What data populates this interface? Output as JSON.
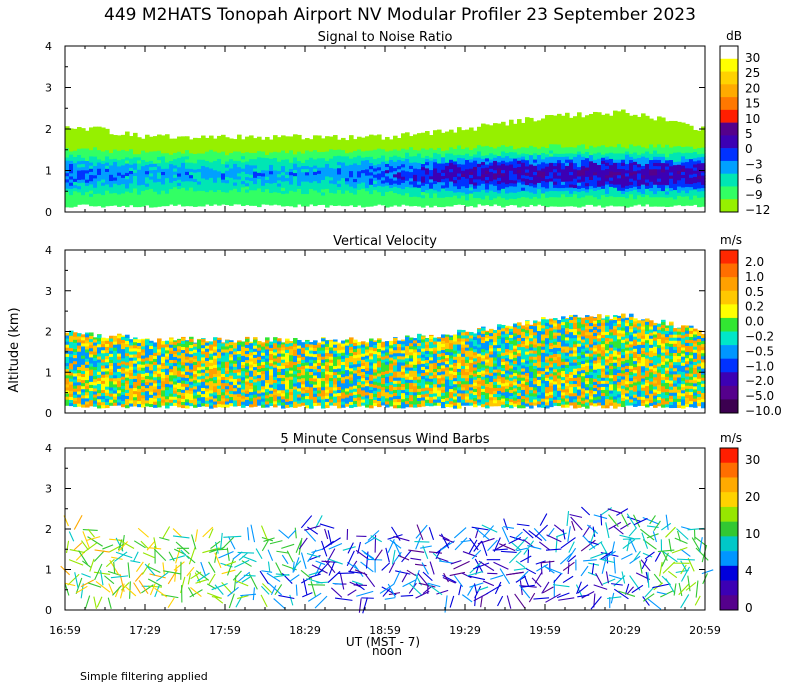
{
  "figure": {
    "title": "449 M2HATS Tonopah Airport NV Modular Profiler 23 September 2023",
    "ylabel": "Altitude (km)",
    "xlabel": "UT  (MST - 7)",
    "noon_label": "noon",
    "footer_note": "Simple filtering applied",
    "x_ticks": [
      "16:59",
      "17:29",
      "17:59",
      "18:29",
      "18:59",
      "19:29",
      "19:59",
      "20:29",
      "20:59"
    ]
  },
  "chart_data": [
    {
      "type": "heatmap",
      "title": "Signal to Noise Ratio",
      "ylim": [
        0,
        4
      ],
      "y_ticks": [
        "0",
        "1",
        "2",
        "3",
        "4"
      ],
      "xlim_hours_ut": [
        16.983,
        20.983
      ],
      "colorbar": {
        "unit": "dB",
        "labels": [
          "30",
          "25",
          "20",
          "15",
          "10",
          "5",
          "0",
          "−3",
          "−6",
          "−9",
          "−12"
        ],
        "colors": [
          "#ffffff",
          "#ffff00",
          "#ffd200",
          "#ffaa00",
          "#ff7800",
          "#ff1e00",
          "#55008c",
          "#3c00b4",
          "#0032ff",
          "#00a0ff",
          "#00e6b4",
          "#32ff64",
          "#96f000"
        ]
      },
      "approx_profile": {
        "t_hours_ut": [
          17.0,
          17.5,
          18.0,
          18.5,
          19.0,
          19.5,
          20.0,
          20.5,
          20.98
        ],
        "top_km": [
          2.1,
          1.8,
          1.8,
          1.8,
          1.8,
          2.0,
          2.3,
          2.4,
          2.0
        ],
        "max_snr_db": [
          0,
          -3,
          -3,
          -3,
          0,
          5,
          5,
          5,
          5
        ]
      }
    },
    {
      "type": "heatmap",
      "title": "Vertical Velocity",
      "ylim": [
        0,
        4
      ],
      "y_ticks": [
        "0",
        "1",
        "2",
        "3",
        "4"
      ],
      "xlim_hours_ut": [
        16.983,
        20.983
      ],
      "colorbar": {
        "unit": "m/s",
        "labels": [
          "2.0",
          "1.0",
          "0.5",
          "0.2",
          "0.0",
          "−0.2",
          "−0.5",
          "−1.0",
          "−2.0",
          "−5.0",
          "−10.0"
        ],
        "colors": [
          "#ff2800",
          "#ff6e00",
          "#ffa000",
          "#ffc800",
          "#ffff00",
          "#32e632",
          "#00e6c8",
          "#0096ff",
          "#0032ff",
          "#3c00b4",
          "#55008c",
          "#3c0050"
        ]
      },
      "approx_profile": {
        "t_hours_ut": [
          17.0,
          17.5,
          18.0,
          18.5,
          19.0,
          19.5,
          20.0,
          20.5,
          20.98
        ],
        "top_km": [
          2.0,
          1.8,
          1.8,
          1.8,
          1.8,
          2.0,
          2.3,
          2.4,
          2.0
        ]
      }
    },
    {
      "type": "scatter",
      "title": "5 Minute Consensus Wind Barbs",
      "ylim": [
        0,
        4
      ],
      "y_ticks": [
        "0",
        "1",
        "2",
        "3",
        "4"
      ],
      "xlim_hours_ut": [
        16.983,
        20.983
      ],
      "colorbar": {
        "unit": "m/s",
        "labels": [
          "30",
          "20",
          "10",
          "4",
          "0"
        ],
        "colors": [
          "#ff1e00",
          "#ff6e00",
          "#ffaa00",
          "#ffd200",
          "#96e600",
          "#32c832",
          "#00c8c8",
          "#0096ff",
          "#0000dc",
          "#3c00b4",
          "#55008c"
        ]
      },
      "approx_profile": {
        "t_hours_ut": [
          17.0,
          17.5,
          18.0,
          18.5,
          19.0,
          19.5,
          20.0,
          20.5,
          20.98
        ],
        "top_km": [
          2.1,
          1.8,
          1.8,
          2.1,
          1.9,
          2.0,
          2.2,
          2.5,
          2.0
        ],
        "mean_speed_ms": [
          6,
          6,
          5,
          3,
          2,
          2,
          2,
          3,
          5
        ]
      }
    }
  ]
}
